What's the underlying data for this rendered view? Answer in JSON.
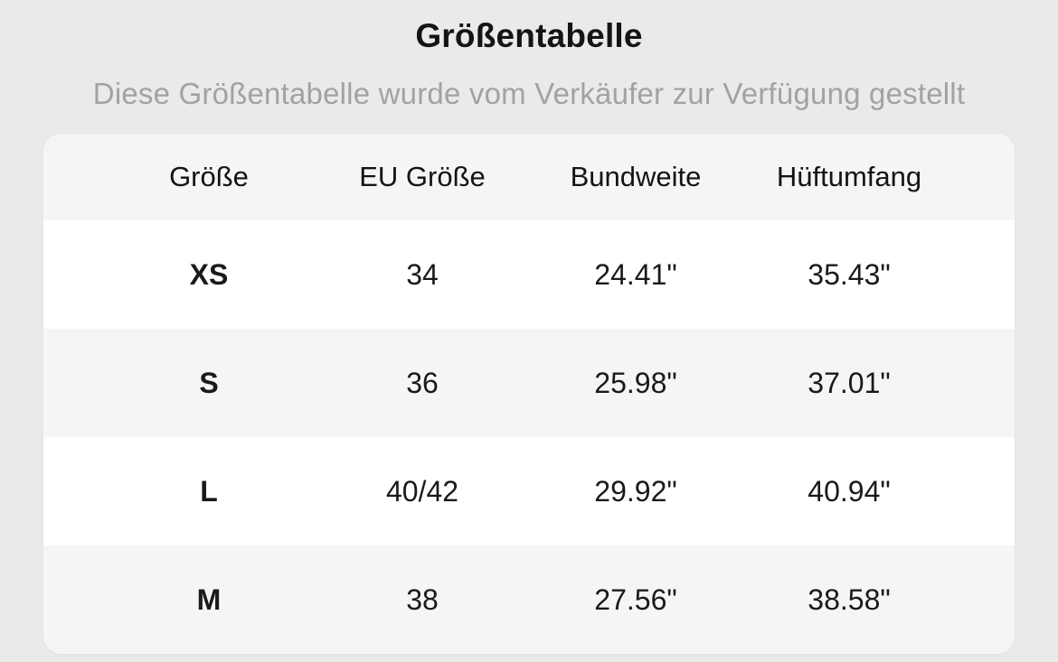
{
  "header": {
    "title": "Größentabelle",
    "subtitle": "Diese Größentabelle wurde vom Verkäufer zur Verfügung gestellt"
  },
  "table": {
    "columns": [
      "Größe",
      "EU Größe",
      "Bundweite",
      "Hüftumfang"
    ],
    "rows": [
      {
        "size": "XS",
        "eu_size": "34",
        "waist": "24.41\"",
        "hip": "35.43\""
      },
      {
        "size": "S",
        "eu_size": "36",
        "waist": "25.98\"",
        "hip": "37.01\""
      },
      {
        "size": "L",
        "eu_size": "40/42",
        "waist": "29.92\"",
        "hip": "40.94\""
      },
      {
        "size": "M",
        "eu_size": "38",
        "waist": "27.56\"",
        "hip": "38.58\""
      }
    ]
  },
  "colors": {
    "page_background": "#eaeaea",
    "card_background": "#ffffff",
    "stripe_background": "#f5f5f5",
    "title_color": "#141414",
    "subtitle_color": "#a2a2a2",
    "text_color": "#1a1a1a"
  }
}
